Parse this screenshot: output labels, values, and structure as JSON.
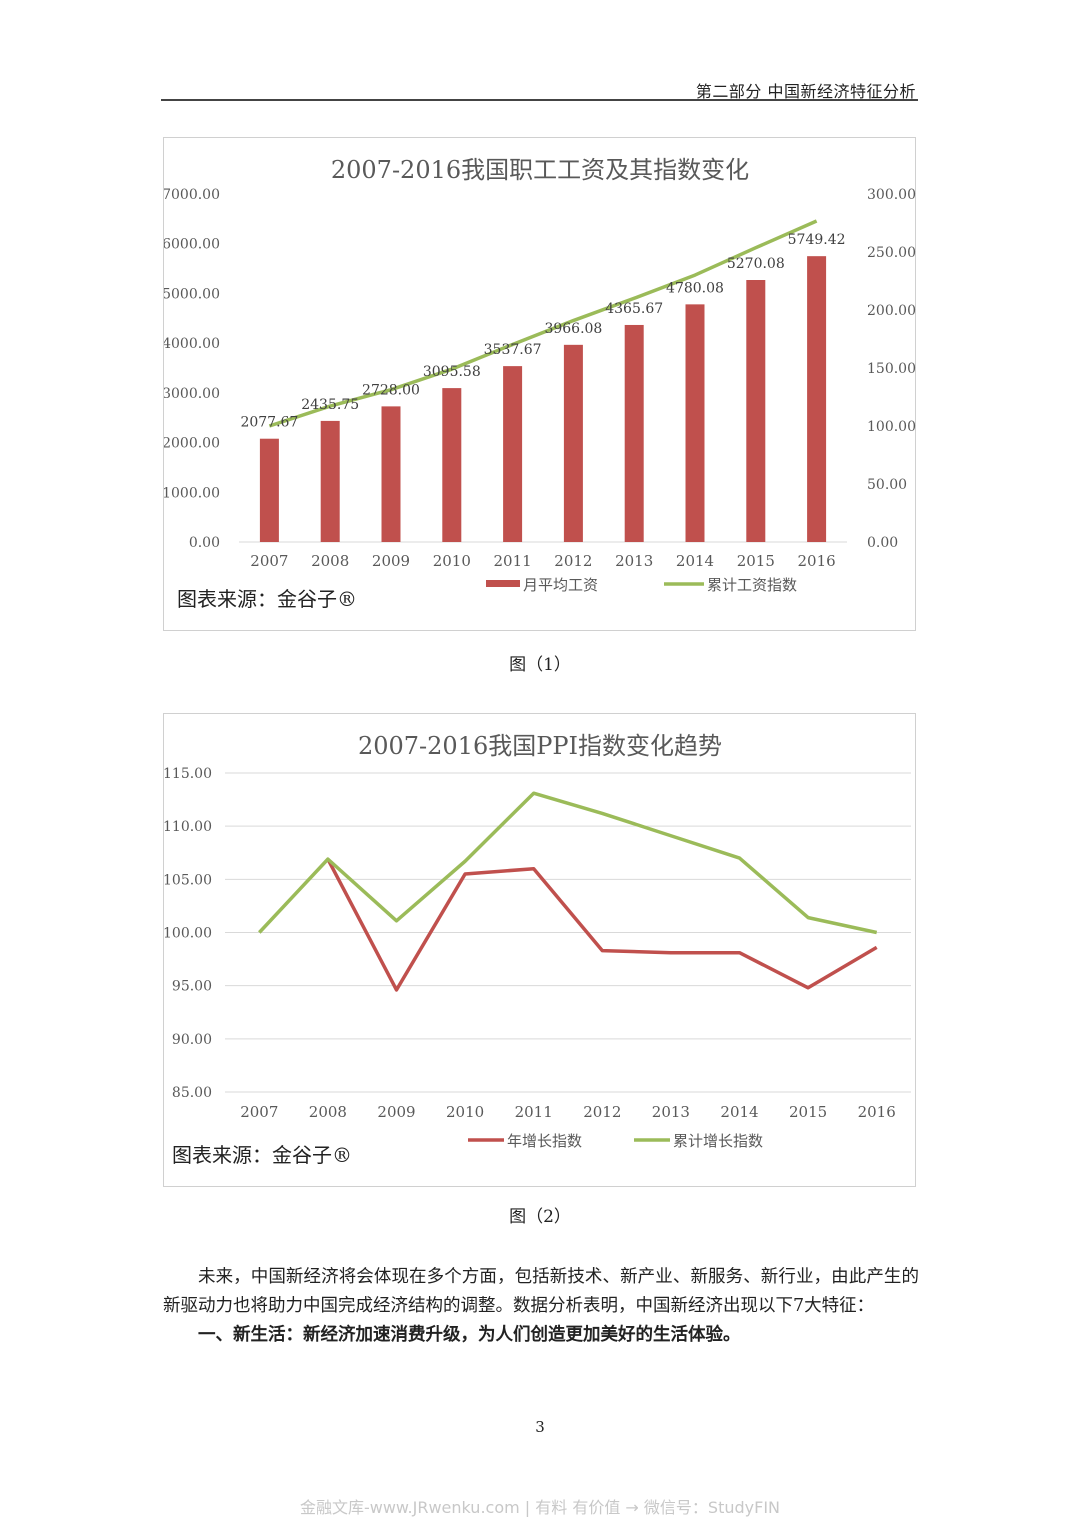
{
  "header": {
    "text": "第二部分  中国新经济特征分析"
  },
  "figure1": {
    "caption": "图（1）",
    "source": "图表来源：金谷子®",
    "colors": {
      "bar": "#c0504d",
      "line": "#9bbb59"
    },
    "chart_data": {
      "type": "bar",
      "title": "2007-2016我国职工工资及其指数变化",
      "categories": [
        "2007",
        "2008",
        "2009",
        "2010",
        "2011",
        "2012",
        "2013",
        "2014",
        "2015",
        "2016"
      ],
      "series": [
        {
          "name": "月平均工资",
          "type": "bar",
          "axis": "left",
          "values": [
            2077.67,
            2435.75,
            2728.0,
            3095.58,
            3537.67,
            3966.08,
            4365.67,
            4780.08,
            5270.08,
            5749.42
          ],
          "labels": [
            "2077.67",
            "2435.75",
            "2728.00",
            "3095.58",
            "3537.67",
            "3966.08",
            "4365.67",
            "4780.08",
            "5270.08",
            "5749.42"
          ]
        },
        {
          "name": "累计工资指数",
          "type": "line",
          "axis": "right",
          "values": [
            100,
            117.2,
            131.3,
            149.0,
            170.3,
            190.9,
            210.1,
            230.1,
            253.7,
            276.7
          ]
        }
      ],
      "ylim_left": [
        0,
        7000
      ],
      "ylim_right": [
        0,
        300
      ],
      "yticks_left": [
        "0.00",
        "1000.00",
        "2000.00",
        "3000.00",
        "4000.00",
        "5000.00",
        "6000.00",
        "7000.00"
      ],
      "yticks_right": [
        "0.00",
        "50.00",
        "100.00",
        "150.00",
        "200.00",
        "250.00",
        "300.00"
      ],
      "grid": false,
      "legend": "bottom"
    }
  },
  "figure2": {
    "caption": "图（2）",
    "source": "图表来源：金谷子®",
    "colors": {
      "annual": "#c0504d",
      "cumulative": "#9bbb59",
      "grid": "#d9d9d9"
    },
    "chart_data": {
      "type": "line",
      "title": "2007-2016我国PPI指数变化趋势",
      "categories": [
        "2007",
        "2008",
        "2009",
        "2010",
        "2011",
        "2012",
        "2013",
        "2014",
        "2015",
        "2016"
      ],
      "series": [
        {
          "name": "年增长指数",
          "values": [
            null,
            106.9,
            94.6,
            105.5,
            106.0,
            98.3,
            98.1,
            98.1,
            94.8,
            98.6
          ]
        },
        {
          "name": "累计增长指数",
          "values": [
            100.0,
            106.9,
            101.1,
            106.7,
            113.1,
            111.2,
            109.1,
            107.0,
            101.4,
            100.0
          ]
        }
      ],
      "ylim": [
        85,
        115
      ],
      "yticks": [
        "85.00",
        "90.00",
        "95.00",
        "100.00",
        "105.00",
        "110.00",
        "115.00"
      ],
      "grid": true,
      "legend": "bottom"
    }
  },
  "body": {
    "paragraph1": "未来，中国新经济将会体现在多个方面，包括新技术、新产业、新服务、新行业，由此产生的新驱动力也将助力中国完成经济结构的调整。数据分析表明，中国新经济出现以下7大特征：",
    "heading1": "一、新生活：新经济加速消费升级，为人们创造更加美好的生活体验。"
  },
  "footer": {
    "page_number": "3",
    "watermark": "金融文库-www.JRwenku.com | 有料 有价值 → 微信号：StudyFIN"
  }
}
